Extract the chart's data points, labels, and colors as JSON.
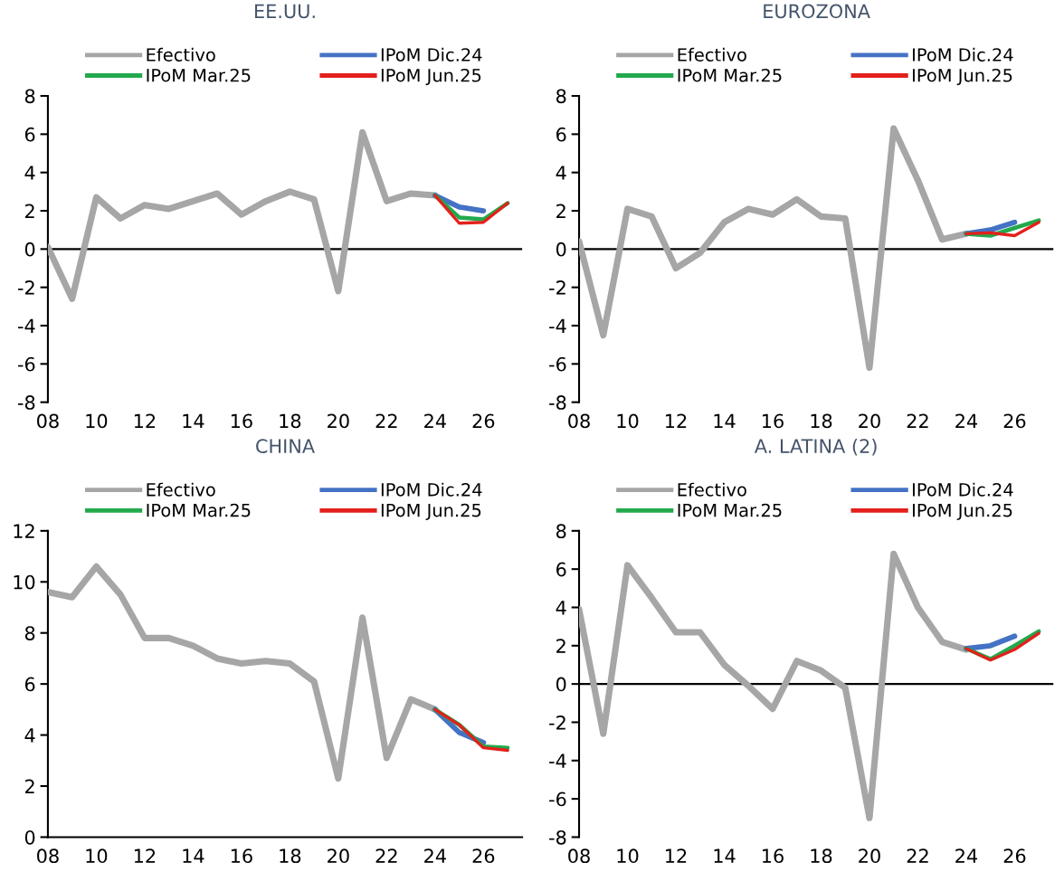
{
  "chart_data": [
    {
      "type": "line",
      "title": "EE.UU.",
      "legend": "top",
      "grid": false,
      "line_style": "solid",
      "xlim": [
        2008,
        2027.6
      ],
      "ylim": [
        -8,
        8
      ],
      "yticks": [
        -8,
        -6,
        -4,
        -2,
        0,
        2,
        4,
        6,
        8
      ],
      "xticks": [
        {
          "value": 2008,
          "label": "08"
        },
        {
          "value": 2010,
          "label": "10"
        },
        {
          "value": 2012,
          "label": "12"
        },
        {
          "value": 2014,
          "label": "14"
        },
        {
          "value": 2016,
          "label": "16"
        },
        {
          "value": 2018,
          "label": "18"
        },
        {
          "value": 2020,
          "label": "20"
        },
        {
          "value": 2022,
          "label": "22"
        },
        {
          "value": 2024,
          "label": "24"
        },
        {
          "value": 2026,
          "label": "26"
        }
      ],
      "ref_lines": [
        {
          "axis": "y",
          "value": 0,
          "label": null,
          "color": "#000000"
        }
      ],
      "series": [
        {
          "name": "Efectivo",
          "color": "#a6a6a6",
          "x": [
            2008,
            2009,
            2010,
            2011,
            2012,
            2013,
            2014,
            2015,
            2016,
            2017,
            2018,
            2019,
            2020,
            2021,
            2022,
            2023,
            2024
          ],
          "values": [
            0.1,
            -2.6,
            2.7,
            1.6,
            2.3,
            2.1,
            2.5,
            2.9,
            1.8,
            2.5,
            3.0,
            2.6,
            -2.2,
            6.1,
            2.5,
            2.9,
            2.8
          ]
        },
        {
          "name": "IPoM Dic.24",
          "color": "#4472c4",
          "x": [
            2024,
            2025,
            2026
          ],
          "values": [
            2.8,
            2.2,
            2.0
          ]
        },
        {
          "name": "IPoM Mar.25",
          "color": "#22a94c",
          "x": [
            2024,
            2025,
            2026,
            2027
          ],
          "values": [
            2.8,
            1.65,
            1.55,
            2.4
          ]
        },
        {
          "name": "IPoM Jun.25",
          "color": "#e3201b",
          "x": [
            2024,
            2025,
            2026,
            2027
          ],
          "values": [
            2.8,
            1.35,
            1.4,
            2.4
          ]
        }
      ]
    },
    {
      "type": "line",
      "title": "EUROZONA",
      "legend": "top",
      "grid": false,
      "line_style": "solid",
      "xlim": [
        2008,
        2027.6
      ],
      "ylim": [
        -8,
        8
      ],
      "yticks": [
        -8,
        -6,
        -4,
        -2,
        0,
        2,
        4,
        6,
        8
      ],
      "xticks": [
        {
          "value": 2008,
          "label": "08"
        },
        {
          "value": 2010,
          "label": "10"
        },
        {
          "value": 2012,
          "label": "12"
        },
        {
          "value": 2014,
          "label": "14"
        },
        {
          "value": 2016,
          "label": "16"
        },
        {
          "value": 2018,
          "label": "18"
        },
        {
          "value": 2020,
          "label": "20"
        },
        {
          "value": 2022,
          "label": "22"
        },
        {
          "value": 2024,
          "label": "24"
        },
        {
          "value": 2026,
          "label": "26"
        }
      ],
      "ref_lines": [
        {
          "axis": "y",
          "value": 0,
          "label": null,
          "color": "#000000"
        }
      ],
      "series": [
        {
          "name": "Efectivo",
          "color": "#a6a6a6",
          "x": [
            2008,
            2009,
            2010,
            2011,
            2012,
            2013,
            2014,
            2015,
            2016,
            2017,
            2018,
            2019,
            2020,
            2021,
            2022,
            2023,
            2024
          ],
          "values": [
            0.4,
            -4.5,
            2.1,
            1.7,
            -1.0,
            -0.2,
            1.4,
            2.1,
            1.8,
            2.6,
            1.7,
            1.6,
            -6.2,
            6.3,
            3.6,
            0.5,
            0.8
          ]
        },
        {
          "name": "IPoM Dic.24",
          "color": "#4472c4",
          "x": [
            2024,
            2025,
            2026
          ],
          "values": [
            0.8,
            1.0,
            1.4
          ]
        },
        {
          "name": "IPoM Mar.25",
          "color": "#22a94c",
          "x": [
            2024,
            2025,
            2026,
            2027
          ],
          "values": [
            0.8,
            0.7,
            1.1,
            1.5
          ]
        },
        {
          "name": "IPoM Jun.25",
          "color": "#e3201b",
          "x": [
            2024,
            2025,
            2026,
            2027
          ],
          "values": [
            0.8,
            0.85,
            0.7,
            1.4
          ]
        }
      ]
    },
    {
      "type": "line",
      "title": "CHINA",
      "legend": "top",
      "grid": false,
      "line_style": "solid",
      "xlim": [
        2008,
        2027.6
      ],
      "ylim": [
        0,
        12
      ],
      "yticks": [
        0,
        2,
        4,
        6,
        8,
        10,
        12
      ],
      "xticks": [
        {
          "value": 2008,
          "label": "08"
        },
        {
          "value": 2010,
          "label": "10"
        },
        {
          "value": 2012,
          "label": "12"
        },
        {
          "value": 2014,
          "label": "14"
        },
        {
          "value": 2016,
          "label": "16"
        },
        {
          "value": 2018,
          "label": "18"
        },
        {
          "value": 2020,
          "label": "20"
        },
        {
          "value": 2022,
          "label": "22"
        },
        {
          "value": 2024,
          "label": "24"
        },
        {
          "value": 2026,
          "label": "26"
        }
      ],
      "series": [
        {
          "name": "Efectivo",
          "color": "#a6a6a6",
          "x": [
            2008,
            2009,
            2010,
            2011,
            2012,
            2013,
            2014,
            2015,
            2016,
            2017,
            2018,
            2019,
            2020,
            2021,
            2022,
            2023,
            2024
          ],
          "values": [
            9.6,
            9.4,
            10.6,
            9.5,
            7.8,
            7.8,
            7.5,
            7.0,
            6.8,
            6.9,
            6.8,
            6.1,
            2.3,
            8.6,
            3.1,
            5.4,
            5.0
          ]
        },
        {
          "name": "IPoM Dic.24",
          "color": "#4472c4",
          "x": [
            2024,
            2025,
            2026
          ],
          "values": [
            5.0,
            4.1,
            3.7
          ]
        },
        {
          "name": "IPoM Mar.25",
          "color": "#22a94c",
          "x": [
            2024,
            2025,
            2026,
            2027
          ],
          "values": [
            5.0,
            4.4,
            3.55,
            3.5
          ]
        },
        {
          "name": "IPoM Jun.25",
          "color": "#e3201b",
          "x": [
            2024,
            2025,
            2026,
            2027
          ],
          "values": [
            5.0,
            4.4,
            3.5,
            3.4
          ]
        }
      ]
    },
    {
      "type": "line",
      "title": "A. LATINA (2)",
      "legend": "top",
      "grid": false,
      "line_style": "solid",
      "xlim": [
        2008,
        2027.6
      ],
      "ylim": [
        -8,
        8
      ],
      "yticks": [
        -8,
        -6,
        -4,
        -2,
        0,
        2,
        4,
        6,
        8
      ],
      "xticks": [
        {
          "value": 2008,
          "label": "08"
        },
        {
          "value": 2010,
          "label": "10"
        },
        {
          "value": 2012,
          "label": "12"
        },
        {
          "value": 2014,
          "label": "14"
        },
        {
          "value": 2016,
          "label": "16"
        },
        {
          "value": 2018,
          "label": "18"
        },
        {
          "value": 2020,
          "label": "20"
        },
        {
          "value": 2022,
          "label": "22"
        },
        {
          "value": 2024,
          "label": "24"
        },
        {
          "value": 2026,
          "label": "26"
        }
      ],
      "ref_lines": [
        {
          "axis": "y",
          "value": 0,
          "label": null,
          "color": "#000000"
        }
      ],
      "series": [
        {
          "name": "Efectivo",
          "color": "#a6a6a6",
          "x": [
            2008,
            2009,
            2010,
            2011,
            2012,
            2013,
            2014,
            2015,
            2016,
            2017,
            2018,
            2019,
            2020,
            2021,
            2022,
            2023,
            2024
          ],
          "values": [
            3.9,
            -2.6,
            6.2,
            4.5,
            2.7,
            2.7,
            1.0,
            -0.1,
            -1.3,
            1.2,
            0.7,
            -0.2,
            -7.0,
            6.8,
            4.0,
            2.2,
            1.8
          ]
        },
        {
          "name": "IPoM Dic.24",
          "color": "#4472c4",
          "x": [
            2024,
            2025,
            2026
          ],
          "values": [
            1.85,
            2.0,
            2.5
          ]
        },
        {
          "name": "IPoM Mar.25",
          "color": "#22a94c",
          "x": [
            2024,
            2025,
            2026,
            2027
          ],
          "values": [
            1.85,
            1.3,
            2.0,
            2.75
          ]
        },
        {
          "name": "IPoM Jun.25",
          "color": "#e3201b",
          "x": [
            2024,
            2025,
            2026,
            2027
          ],
          "values": [
            1.85,
            1.25,
            1.8,
            2.65
          ]
        }
      ]
    }
  ]
}
